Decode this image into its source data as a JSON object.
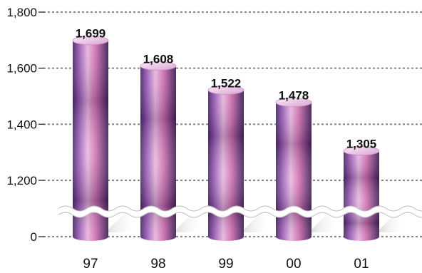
{
  "chart_data": {
    "type": "bar",
    "style": "3d-cylinder",
    "axis_break": true,
    "categories": [
      "97",
      "98",
      "99",
      "00",
      "01"
    ],
    "values": [
      1699,
      1608,
      1522,
      1478,
      1305
    ],
    "data_labels": [
      "1,699",
      "1,608",
      "1,522",
      "1,478",
      "1,305"
    ],
    "yticks": [
      0,
      1200,
      1400,
      1600,
      1800
    ],
    "ytick_labels": [
      "0",
      "1,200",
      "1,400",
      "1,600",
      "1,800"
    ],
    "ylim": [
      1200,
      1800
    ],
    "grid": "dotted",
    "title": "",
    "xlabel": "",
    "ylabel": ""
  },
  "colors": {
    "bar_dark": "#4a2a66",
    "bar_mid": "#9a5cb8",
    "bar_light": "#e9b8e0",
    "bar_pink": "#d06fb0",
    "cap_top": "#f3d7ef",
    "grid": "#808080",
    "shadow": "#cfcfcf"
  }
}
